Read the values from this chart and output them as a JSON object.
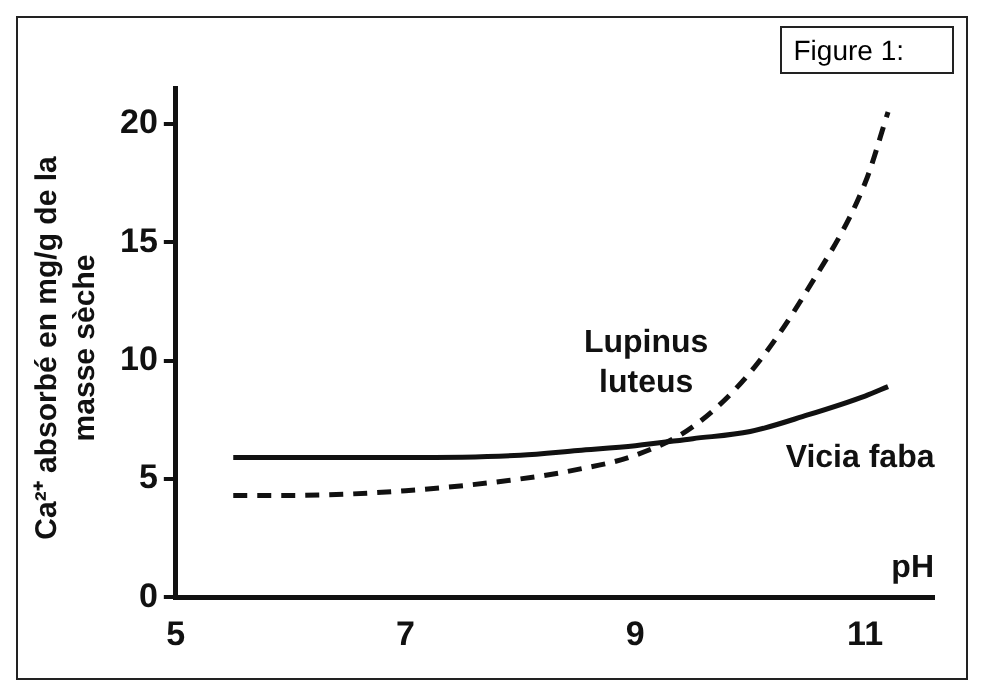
{
  "chart_data": {
    "type": "line",
    "title": "Figure 1:",
    "xlabel": "pH",
    "ylabel": "Ca²⁺ absorbé en mg/g de la masse sèche",
    "xlim": [
      5,
      11.6
    ],
    "xticks": [
      5,
      7,
      9,
      11
    ],
    "ylim": [
      0,
      21.5
    ],
    "yticks": [
      0,
      5,
      10,
      15,
      20
    ],
    "grid": false,
    "legend": false,
    "marker": "none",
    "series": [
      {
        "name": "Lupinus luteus",
        "color": "#111111",
        "line_style": "dashed",
        "x": [
          5.5,
          6,
          7,
          8,
          8.5,
          9,
          9.5,
          10,
          10.5,
          11,
          11.2
        ],
        "values": [
          4.3,
          4.3,
          4.5,
          5.0,
          5.4,
          6.0,
          7.2,
          9.5,
          13.0,
          17.5,
          20.5
        ]
      },
      {
        "name": "Vicia faba",
        "color": "#111111",
        "line_style": "solid",
        "x": [
          5.5,
          6,
          7,
          8,
          8.5,
          9,
          9.5,
          10,
          10.5,
          11,
          11.2
        ],
        "values": [
          5.9,
          5.9,
          5.9,
          6.0,
          6.2,
          6.4,
          6.7,
          7.0,
          7.7,
          8.5,
          8.9
        ]
      }
    ]
  }
}
